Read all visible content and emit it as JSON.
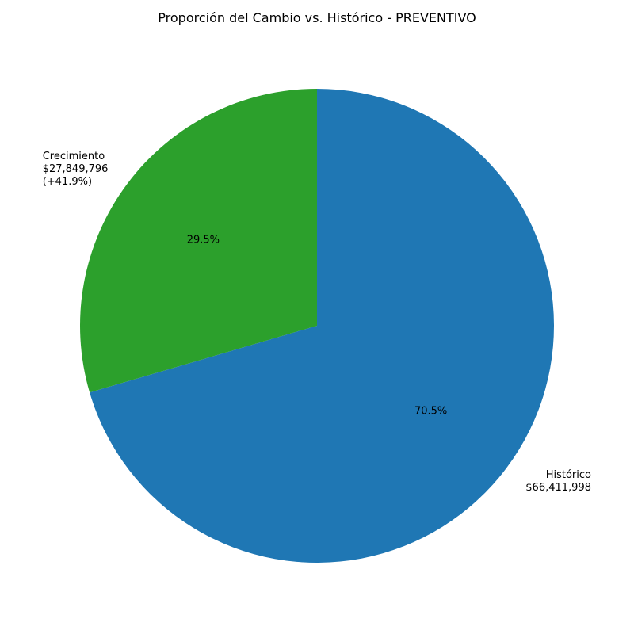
{
  "chart_data": {
    "type": "pie",
    "title": "Proporción del Cambio vs. Histórico - PREVENTIVO",
    "slices": [
      {
        "label": "Histórico",
        "amount_label": "$66,411,998",
        "extra_label": "",
        "value": 66411998,
        "percent_label": "70.5%",
        "color": "#1f77b4"
      },
      {
        "label": "Crecimiento",
        "amount_label": "$27,849,796",
        "extra_label": "(+41.9%)",
        "value": 27849796,
        "percent_label": "29.5%",
        "color": "#2ca02c"
      }
    ],
    "start_angle_deg": 90,
    "direction": "clockwise"
  }
}
